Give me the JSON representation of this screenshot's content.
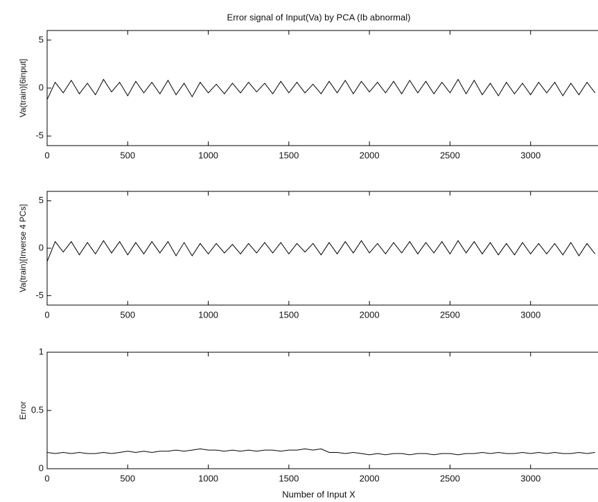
{
  "chart_data": [
    {
      "type": "line",
      "title": "Error signal of Input(Va) by PCA (Ib abnormal)",
      "ylabel": "Va(train)[6input]",
      "x": [
        0,
        50,
        100,
        150,
        200,
        250,
        300,
        350,
        400,
        450,
        500,
        550,
        600,
        650,
        700,
        750,
        800,
        850,
        900,
        950,
        1000,
        1050,
        1100,
        1150,
        1200,
        1250,
        1300,
        1350,
        1400,
        1450,
        1500,
        1550,
        1600,
        1650,
        1700,
        1750,
        1800,
        1850,
        1900,
        1950,
        2000,
        2050,
        2100,
        2150,
        2200,
        2250,
        2300,
        2350,
        2400,
        2450,
        2500,
        2550,
        2600,
        2650,
        2700,
        2750,
        2800,
        2850,
        2900,
        2950,
        3000,
        3050,
        3100,
        3150,
        3200,
        3250,
        3300,
        3350,
        3400
      ],
      "series": [
        {
          "color": "#000000",
          "values": [
            -1.2,
            0.6,
            -0.5,
            0.8,
            -0.6,
            0.5,
            -0.7,
            0.9,
            -0.4,
            0.6,
            -0.8,
            0.7,
            -0.5,
            0.6,
            -0.6,
            0.8,
            -0.7,
            0.5,
            -0.9,
            0.6,
            -0.5,
            0.4,
            -0.6,
            0.5,
            -0.5,
            0.6,
            -0.4,
            0.5,
            -0.6,
            0.7,
            -0.5,
            0.6,
            -0.5,
            0.4,
            -0.6,
            0.7,
            -0.5,
            0.8,
            -0.6,
            0.7,
            -0.4,
            0.6,
            -0.5,
            0.7,
            -0.6,
            0.8,
            -0.5,
            0.7,
            -0.6,
            0.6,
            -0.5,
            0.9,
            -0.6,
            0.8,
            -0.7,
            0.5,
            -0.8,
            0.6,
            -0.6,
            0.5,
            -0.7,
            0.6,
            -0.5,
            0.6,
            -0.8,
            0.5,
            -0.7,
            0.6,
            -0.5
          ]
        }
      ],
      "xlim": [
        0,
        3500
      ],
      "xticks": [
        0,
        500,
        1000,
        1500,
        2000,
        2500,
        3000
      ],
      "ylim": [
        -6,
        6
      ],
      "yticks": [
        -5,
        0,
        5
      ]
    },
    {
      "type": "line",
      "ylabel": "Va(train)[Inverse 4 PCs]",
      "x": [
        0,
        50,
        100,
        150,
        200,
        250,
        300,
        350,
        400,
        450,
        500,
        550,
        600,
        650,
        700,
        750,
        800,
        850,
        900,
        950,
        1000,
        1050,
        1100,
        1150,
        1200,
        1250,
        1300,
        1350,
        1400,
        1450,
        1500,
        1550,
        1600,
        1650,
        1700,
        1750,
        1800,
        1850,
        1900,
        1950,
        2000,
        2050,
        2100,
        2150,
        2200,
        2250,
        2300,
        2350,
        2400,
        2450,
        2500,
        2550,
        2600,
        2650,
        2700,
        2750,
        2800,
        2850,
        2900,
        2950,
        3000,
        3050,
        3100,
        3150,
        3200,
        3250,
        3300,
        3350,
        3400
      ],
      "series": [
        {
          "color": "#000000",
          "values": [
            -1.4,
            0.7,
            -0.4,
            0.7,
            -0.7,
            0.6,
            -0.6,
            0.8,
            -0.5,
            0.7,
            -0.7,
            0.6,
            -0.6,
            0.7,
            -0.5,
            0.7,
            -0.8,
            0.6,
            -0.8,
            0.5,
            -0.6,
            0.5,
            -0.5,
            0.4,
            -0.6,
            0.5,
            -0.5,
            0.6,
            -0.5,
            0.6,
            -0.6,
            0.5,
            -0.4,
            0.5,
            -0.7,
            0.6,
            -0.6,
            0.7,
            -0.5,
            0.8,
            -0.5,
            0.5,
            -0.6,
            0.6,
            -0.5,
            0.7,
            -0.6,
            0.6,
            -0.5,
            0.7,
            -0.6,
            0.8,
            -0.5,
            0.7,
            -0.6,
            0.6,
            -0.7,
            0.5,
            -0.7,
            0.6,
            -0.6,
            0.5,
            -0.6,
            0.5,
            -0.7,
            0.6,
            -0.8,
            0.5,
            -0.6
          ]
        }
      ],
      "xlim": [
        0,
        3500
      ],
      "xticks": [
        0,
        500,
        1000,
        1500,
        2000,
        2500,
        3000
      ],
      "ylim": [
        -6,
        6
      ],
      "yticks": [
        -5,
        0,
        5
      ]
    },
    {
      "type": "line",
      "ylabel": "Error",
      "xlabel": "Number of Input X",
      "x": [
        0,
        50,
        100,
        150,
        200,
        250,
        300,
        350,
        400,
        450,
        500,
        550,
        600,
        650,
        700,
        750,
        800,
        850,
        900,
        950,
        1000,
        1050,
        1100,
        1150,
        1200,
        1250,
        1300,
        1350,
        1400,
        1450,
        1500,
        1550,
        1600,
        1650,
        1700,
        1750,
        1800,
        1850,
        1900,
        1950,
        2000,
        2050,
        2100,
        2150,
        2200,
        2250,
        2300,
        2350,
        2400,
        2450,
        2500,
        2550,
        2600,
        2650,
        2700,
        2750,
        2800,
        2850,
        2900,
        2950,
        3000,
        3050,
        3100,
        3150,
        3200,
        3250,
        3300,
        3350,
        3400
      ],
      "series": [
        {
          "color": "#000000",
          "values": [
            0.14,
            0.13,
            0.14,
            0.13,
            0.14,
            0.13,
            0.13,
            0.14,
            0.13,
            0.14,
            0.15,
            0.14,
            0.15,
            0.14,
            0.15,
            0.15,
            0.16,
            0.15,
            0.16,
            0.17,
            0.16,
            0.16,
            0.15,
            0.16,
            0.15,
            0.16,
            0.15,
            0.16,
            0.16,
            0.15,
            0.16,
            0.16,
            0.17,
            0.16,
            0.17,
            0.14,
            0.14,
            0.13,
            0.14,
            0.13,
            0.12,
            0.13,
            0.12,
            0.13,
            0.13,
            0.12,
            0.13,
            0.13,
            0.12,
            0.13,
            0.13,
            0.12,
            0.13,
            0.13,
            0.14,
            0.13,
            0.14,
            0.13,
            0.13,
            0.14,
            0.13,
            0.14,
            0.13,
            0.14,
            0.13,
            0.13,
            0.14,
            0.13,
            0.14
          ]
        }
      ],
      "xlim": [
        0,
        3500
      ],
      "xticks": [
        0,
        500,
        1000,
        1500,
        2000,
        2500,
        3000
      ],
      "ylim": [
        0,
        1
      ],
      "yticks": [
        0,
        0.5,
        1
      ]
    }
  ]
}
